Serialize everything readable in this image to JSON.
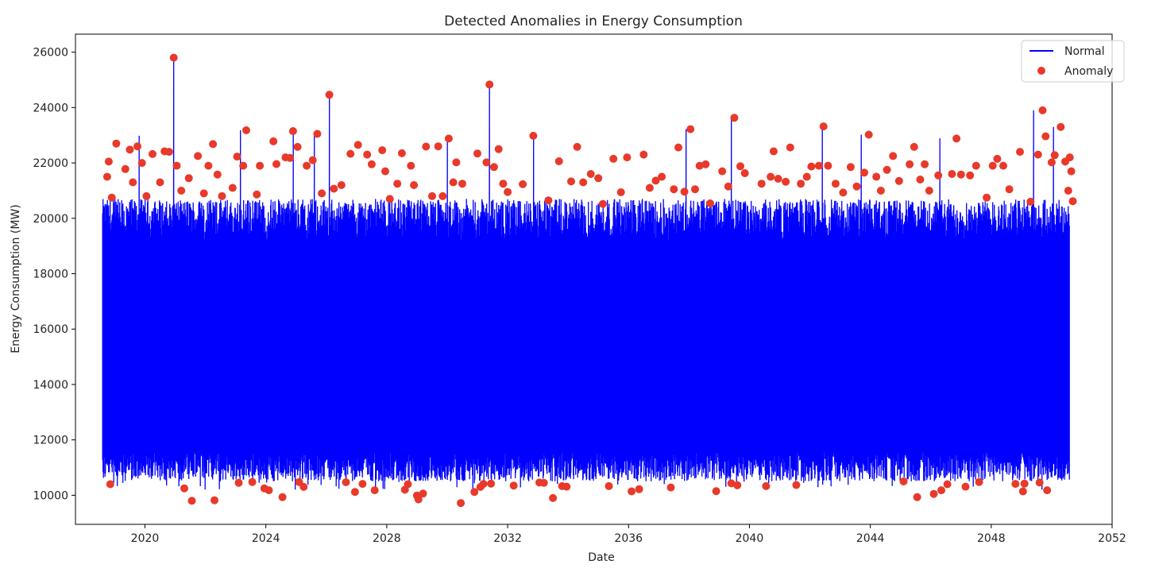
{
  "chart_data": {
    "type": "line",
    "title": "Detected Anomalies in Energy Consumption",
    "xlabel": "Date",
    "ylabel": "Energy Consumption (MW)",
    "x_range": [
      2018.6,
      2050.6
    ],
    "xlim": [
      2017.7,
      2052.0
    ],
    "ylim": [
      8950,
      26650
    ],
    "xticks": [
      {
        "value": 2020,
        "label": "2020"
      },
      {
        "value": 2024,
        "label": "2024"
      },
      {
        "value": 2028,
        "label": "2028"
      },
      {
        "value": 2032,
        "label": "2032"
      },
      {
        "value": 2036,
        "label": "2036"
      },
      {
        "value": 2040,
        "label": "2040"
      },
      {
        "value": 2044,
        "label": "2044"
      },
      {
        "value": 2048,
        "label": "2048"
      },
      {
        "value": 2052,
        "label": "2052"
      }
    ],
    "yticks": [
      {
        "value": 10000,
        "label": "10000"
      },
      {
        "value": 12000,
        "label": "12000"
      },
      {
        "value": 14000,
        "label": "14000"
      },
      {
        "value": 16000,
        "label": "16000"
      },
      {
        "value": 18000,
        "label": "18000"
      },
      {
        "value": 20000,
        "label": "20000"
      },
      {
        "value": 22000,
        "label": "22000"
      },
      {
        "value": 24000,
        "label": "24000"
      },
      {
        "value": 26000,
        "label": "26000"
      }
    ],
    "grid": false,
    "legend_position": "upper right",
    "series": [
      {
        "name": "Normal",
        "kind": "line",
        "color": "#0000ff",
        "band_min": 10900,
        "band_max": 20400,
        "spikes": [
          [
            2020.95,
            25800
          ],
          [
            2031.4,
            24830
          ],
          [
            2026.1,
            24460
          ],
          [
            2049.4,
            23900
          ],
          [
            2039.4,
            23630
          ],
          [
            2042.4,
            23320
          ],
          [
            2050.05,
            23300
          ],
          [
            2037.9,
            23220
          ],
          [
            2023.15,
            23180
          ],
          [
            2024.9,
            23150
          ],
          [
            2025.6,
            23050
          ],
          [
            2043.7,
            23020
          ],
          [
            2019.8,
            22980
          ],
          [
            2032.85,
            22980
          ],
          [
            2046.3,
            22890
          ],
          [
            2030.0,
            22880
          ]
        ]
      },
      {
        "name": "Anomaly",
        "kind": "scatter",
        "color": "#e8392a",
        "points": [
          [
            2018.75,
            21500
          ],
          [
            2018.8,
            22050
          ],
          [
            2018.85,
            10400
          ],
          [
            2018.9,
            20750
          ],
          [
            2019.05,
            22700
          ],
          [
            2019.35,
            21780
          ],
          [
            2019.5,
            22480
          ],
          [
            2019.6,
            21300
          ],
          [
            2019.75,
            22600
          ],
          [
            2019.9,
            22000
          ],
          [
            2020.05,
            20800
          ],
          [
            2020.25,
            22320
          ],
          [
            2020.5,
            21300
          ],
          [
            2020.65,
            22420
          ],
          [
            2020.8,
            22400
          ],
          [
            2020.95,
            25800
          ],
          [
            2021.05,
            21900
          ],
          [
            2021.2,
            21000
          ],
          [
            2021.3,
            10250
          ],
          [
            2021.45,
            21450
          ],
          [
            2021.55,
            9800
          ],
          [
            2021.75,
            22250
          ],
          [
            2021.95,
            20900
          ],
          [
            2022.1,
            21900
          ],
          [
            2022.25,
            22680
          ],
          [
            2022.3,
            9820
          ],
          [
            2022.4,
            21580
          ],
          [
            2022.55,
            20800
          ],
          [
            2022.9,
            21100
          ],
          [
            2023.05,
            22230
          ],
          [
            2023.1,
            10450
          ],
          [
            2023.25,
            21900
          ],
          [
            2023.35,
            23180
          ],
          [
            2023.55,
            10480
          ],
          [
            2023.7,
            20860
          ],
          [
            2023.8,
            21900
          ],
          [
            2023.95,
            10250
          ],
          [
            2024.1,
            10180
          ],
          [
            2024.25,
            22780
          ],
          [
            2024.35,
            21960
          ],
          [
            2024.55,
            9930
          ],
          [
            2024.65,
            22200
          ],
          [
            2024.8,
            22180
          ],
          [
            2024.9,
            23150
          ],
          [
            2025.05,
            22580
          ],
          [
            2025.1,
            10480
          ],
          [
            2025.25,
            10300
          ],
          [
            2025.35,
            21900
          ],
          [
            2025.55,
            22100
          ],
          [
            2025.7,
            23050
          ],
          [
            2025.85,
            20900
          ],
          [
            2026.1,
            24460
          ],
          [
            2026.25,
            21070
          ],
          [
            2026.5,
            21200
          ],
          [
            2026.65,
            10470
          ],
          [
            2026.8,
            22330
          ],
          [
            2026.95,
            10120
          ],
          [
            2027.05,
            22650
          ],
          [
            2027.2,
            10410
          ],
          [
            2027.35,
            22300
          ],
          [
            2027.5,
            21950
          ],
          [
            2027.6,
            10180
          ],
          [
            2027.85,
            22460
          ],
          [
            2027.95,
            21700
          ],
          [
            2028.1,
            20700
          ],
          [
            2028.35,
            21250
          ],
          [
            2028.5,
            22350
          ],
          [
            2028.6,
            10200
          ],
          [
            2028.7,
            10400
          ],
          [
            2028.8,
            21900
          ],
          [
            2028.9,
            21200
          ],
          [
            2029.0,
            9990
          ],
          [
            2029.05,
            9850
          ],
          [
            2029.2,
            10060
          ],
          [
            2029.3,
            22590
          ],
          [
            2029.5,
            20800
          ],
          [
            2029.7,
            22600
          ],
          [
            2029.85,
            20800
          ],
          [
            2030.05,
            22880
          ],
          [
            2030.2,
            21300
          ],
          [
            2030.3,
            22020
          ],
          [
            2030.45,
            9720
          ],
          [
            2030.5,
            21250
          ],
          [
            2030.9,
            10120
          ],
          [
            2031.0,
            22340
          ],
          [
            2031.1,
            10300
          ],
          [
            2031.2,
            10410
          ],
          [
            2031.3,
            22020
          ],
          [
            2031.4,
            24830
          ],
          [
            2031.45,
            10420
          ],
          [
            2031.55,
            21850
          ],
          [
            2031.7,
            22500
          ],
          [
            2031.85,
            21250
          ],
          [
            2032.0,
            20950
          ],
          [
            2032.2,
            10350
          ],
          [
            2032.5,
            21230
          ],
          [
            2032.85,
            22980
          ],
          [
            2033.05,
            10460
          ],
          [
            2033.2,
            10450
          ],
          [
            2033.35,
            20650
          ],
          [
            2033.5,
            9900
          ],
          [
            2033.7,
            22060
          ],
          [
            2033.8,
            10330
          ],
          [
            2033.95,
            10310
          ],
          [
            2034.1,
            21330
          ],
          [
            2034.3,
            22580
          ],
          [
            2034.5,
            21300
          ],
          [
            2034.75,
            21600
          ],
          [
            2035.0,
            21450
          ],
          [
            2035.15,
            20520
          ],
          [
            2035.35,
            10330
          ],
          [
            2035.5,
            22150
          ],
          [
            2035.75,
            20940
          ],
          [
            2035.95,
            22200
          ],
          [
            2036.1,
            10140
          ],
          [
            2036.35,
            10220
          ],
          [
            2036.5,
            22300
          ],
          [
            2036.7,
            21100
          ],
          [
            2036.9,
            21360
          ],
          [
            2037.1,
            21500
          ],
          [
            2037.4,
            10280
          ],
          [
            2037.5,
            21050
          ],
          [
            2037.65,
            22560
          ],
          [
            2037.85,
            20960
          ],
          [
            2038.05,
            23220
          ],
          [
            2038.2,
            21050
          ],
          [
            2038.35,
            21900
          ],
          [
            2038.55,
            21950
          ],
          [
            2038.7,
            20540
          ],
          [
            2038.9,
            10150
          ],
          [
            2039.1,
            21700
          ],
          [
            2039.3,
            21150
          ],
          [
            2039.4,
            10430
          ],
          [
            2039.5,
            23630
          ],
          [
            2039.6,
            10360
          ],
          [
            2039.7,
            21880
          ],
          [
            2039.85,
            21630
          ],
          [
            2040.4,
            21250
          ],
          [
            2040.55,
            10330
          ],
          [
            2040.7,
            21500
          ],
          [
            2040.8,
            22420
          ],
          [
            2040.95,
            21430
          ],
          [
            2041.2,
            21320
          ],
          [
            2041.35,
            22560
          ],
          [
            2041.55,
            10370
          ],
          [
            2041.7,
            21250
          ],
          [
            2041.9,
            21500
          ],
          [
            2042.05,
            21870
          ],
          [
            2042.3,
            21900
          ],
          [
            2042.45,
            23320
          ],
          [
            2042.6,
            21900
          ],
          [
            2042.85,
            21250
          ],
          [
            2043.1,
            20930
          ],
          [
            2043.35,
            21850
          ],
          [
            2043.55,
            21150
          ],
          [
            2043.8,
            21650
          ],
          [
            2043.95,
            23020
          ],
          [
            2044.2,
            21500
          ],
          [
            2044.35,
            21000
          ],
          [
            2044.55,
            21750
          ],
          [
            2044.75,
            22250
          ],
          [
            2044.95,
            21350
          ],
          [
            2045.1,
            10500
          ],
          [
            2045.3,
            21950
          ],
          [
            2045.45,
            22580
          ],
          [
            2045.55,
            9930
          ],
          [
            2045.65,
            21400
          ],
          [
            2045.8,
            21950
          ],
          [
            2045.95,
            21000
          ],
          [
            2046.1,
            10050
          ],
          [
            2046.25,
            21550
          ],
          [
            2046.35,
            10180
          ],
          [
            2046.55,
            10400
          ],
          [
            2046.7,
            21600
          ],
          [
            2046.85,
            22880
          ],
          [
            2047.0,
            21580
          ],
          [
            2047.15,
            10310
          ],
          [
            2047.3,
            21550
          ],
          [
            2047.5,
            21900
          ],
          [
            2047.6,
            10480
          ],
          [
            2047.85,
            20750
          ],
          [
            2048.05,
            21900
          ],
          [
            2048.2,
            22150
          ],
          [
            2048.4,
            21900
          ],
          [
            2048.6,
            21050
          ],
          [
            2048.8,
            10410
          ],
          [
            2048.95,
            22400
          ],
          [
            2049.05,
            10140
          ],
          [
            2049.1,
            10420
          ],
          [
            2049.3,
            20600
          ],
          [
            2049.55,
            22300
          ],
          [
            2049.6,
            10460
          ],
          [
            2049.7,
            23900
          ],
          [
            2049.8,
            22960
          ],
          [
            2049.85,
            10180
          ],
          [
            2050.0,
            22020
          ],
          [
            2050.1,
            22280
          ],
          [
            2050.3,
            23300
          ],
          [
            2050.45,
            22050
          ],
          [
            2050.55,
            21000
          ],
          [
            2050.6,
            22200
          ],
          [
            2050.65,
            21700
          ],
          [
            2050.7,
            20620
          ]
        ]
      }
    ]
  }
}
